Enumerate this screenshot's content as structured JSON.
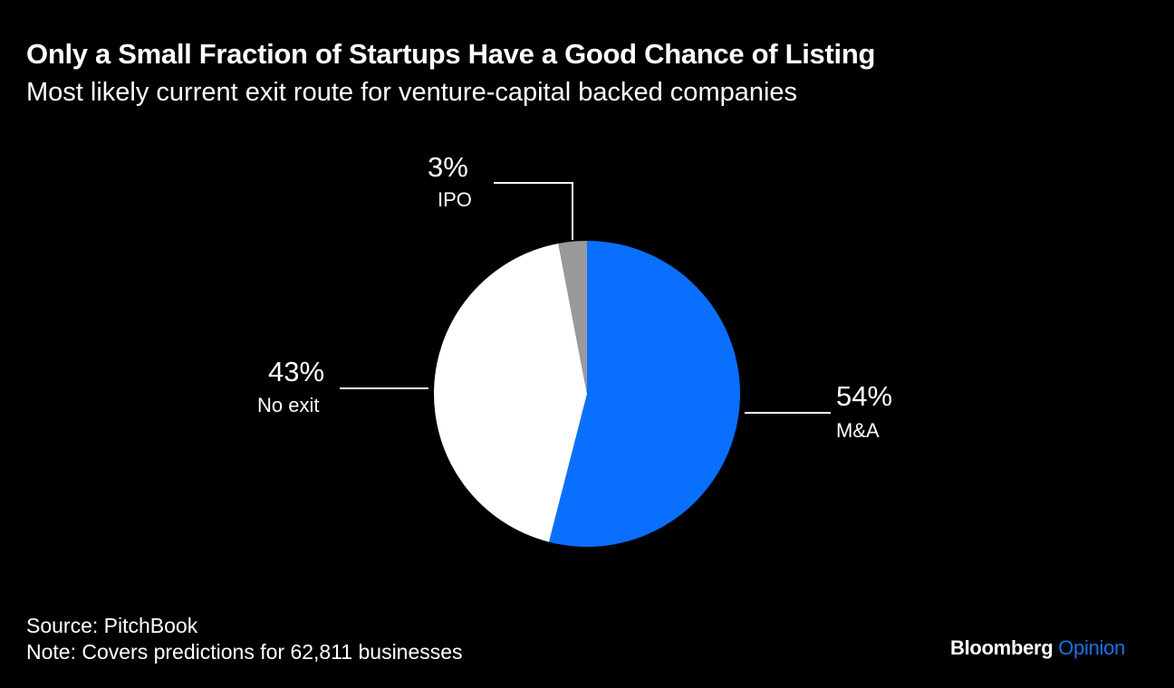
{
  "chart_data": {
    "type": "pie",
    "title": "Only a Small Fraction of Startups Have a Good Chance of Listing",
    "subtitle": "Most likely current exit route for venture-capital backed companies",
    "start_angle": "12 o'clock, clockwise",
    "slices": [
      {
        "label": "M&A",
        "value": 54,
        "value_label": "54%",
        "color": "#0a6fff"
      },
      {
        "label": "No exit",
        "value": 43,
        "value_label": "43%",
        "color": "#ffffff"
      },
      {
        "label": "IPO",
        "value": 3,
        "value_label": "3%",
        "color": "#999999"
      }
    ]
  },
  "footer": {
    "source": "Source: PitchBook",
    "note": "Note: Covers predictions for 62,811 businesses"
  },
  "logo": {
    "brand": "Bloomberg",
    "section": "Opinion",
    "section_color": "#1a73e8"
  }
}
